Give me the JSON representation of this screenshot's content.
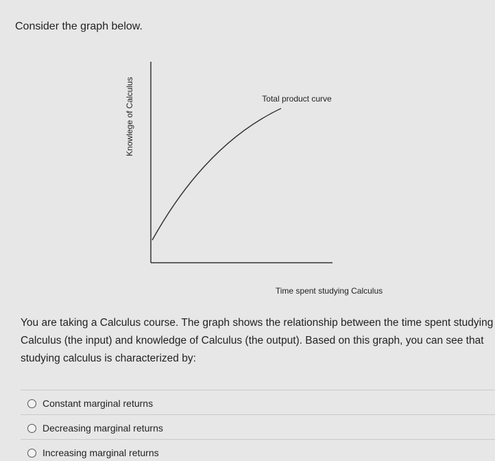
{
  "prompt": "Consider the graph below.",
  "graph": {
    "y_axis_label": "Knowlege of Calculus",
    "curve_label": "Total product curve",
    "x_axis_label": "Time spent studying Calculus"
  },
  "question": "You are taking a Calculus course. The graph shows the relationship between the time spent studying Calculus  (the input) and knowledge of Calculus (the output). Based on this graph, you can see that studying calculus is characterized by:",
  "options": [
    "Constant marginal returns",
    "Decreasing marginal returns",
    "Increasing marginal returns"
  ]
}
